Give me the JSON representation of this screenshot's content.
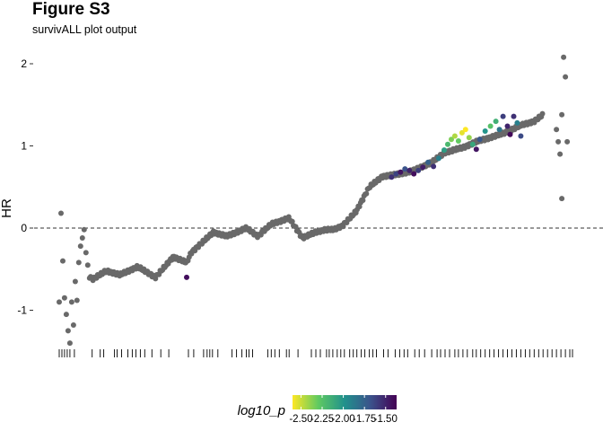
{
  "figure": {
    "title": "Figure S3",
    "subtitle": "survivALL plot output"
  },
  "chart_data": {
    "type": "scatter",
    "title": "Figure S3",
    "subtitle": "survivALL plot output",
    "xlabel": "",
    "ylabel": "HR",
    "yticks": [
      -1,
      0,
      1,
      2
    ],
    "ylim": [
      -1.5,
      2.25
    ],
    "xlim": [
      0,
      580
    ],
    "grid": false,
    "reference_line_y": 0,
    "point_default_color": "#696969",
    "colormap": "viridis",
    "color_min_hex": "#fde725",
    "color_max_hex": "#440154",
    "legend": {
      "title": "log10_p",
      "position": "bottom",
      "range": [
        -2.6,
        -1.37
      ],
      "ticks": [
        "-2.50",
        "-2.25",
        "-2.00",
        "-1.75",
        "-1.50"
      ],
      "tick_values": [
        -2.5,
        -2.25,
        -2.0,
        -1.75,
        -1.5
      ]
    },
    "curve_anchors": {
      "x": [
        0,
        8,
        12,
        20,
        30,
        40,
        55,
        70,
        90,
        110,
        130,
        145,
        150,
        175,
        190,
        212,
        225,
        240,
        260,
        275,
        290,
        300,
        310,
        320,
        335,
        350,
        365,
        380,
        400,
        420,
        435,
        455,
        470,
        485,
        500,
        510,
        520,
        535,
        545
      ],
      "y": [
        -0.9,
        -1.4,
        -0.9,
        -0.6,
        -0.55,
        -0.62,
        -0.52,
        -0.57,
        -0.47,
        -0.6,
        -0.35,
        -0.42,
        -0.3,
        -0.05,
        -0.1,
        0.0,
        -0.1,
        0.05,
        0.12,
        -0.12,
        -0.05,
        -0.02,
        -0.02,
        0.03,
        0.2,
        0.5,
        0.63,
        0.65,
        0.7,
        0.8,
        0.92,
        0.98,
        1.05,
        1.1,
        1.15,
        1.2,
        1.25,
        1.3,
        1.38
      ]
    },
    "colored_points": [
      {
        "x": 145,
        "y": -0.6,
        "log10_p": -1.42
      },
      {
        "x": 375,
        "y": 0.62,
        "log10_p": -1.55
      },
      {
        "x": 380,
        "y": 0.66,
        "log10_p": -1.62
      },
      {
        "x": 385,
        "y": 0.68,
        "log10_p": -1.45
      },
      {
        "x": 390,
        "y": 0.72,
        "log10_p": -1.68
      },
      {
        "x": 395,
        "y": 0.7,
        "log10_p": -1.5
      },
      {
        "x": 400,
        "y": 0.66,
        "log10_p": -1.42
      },
      {
        "x": 405,
        "y": 0.7,
        "log10_p": -1.6
      },
      {
        "x": 410,
        "y": 0.74,
        "log10_p": -1.48
      },
      {
        "x": 416,
        "y": 0.8,
        "log10_p": -1.75
      },
      {
        "x": 422,
        "y": 0.75,
        "log10_p": -1.55
      },
      {
        "x": 428,
        "y": 0.85,
        "log10_p": -1.9
      },
      {
        "x": 434,
        "y": 0.95,
        "log10_p": -2.05
      },
      {
        "x": 438,
        "y": 1.02,
        "log10_p": -2.2
      },
      {
        "x": 442,
        "y": 1.08,
        "log10_p": -2.35
      },
      {
        "x": 446,
        "y": 1.12,
        "log10_p": -2.45
      },
      {
        "x": 450,
        "y": 1.06,
        "log10_p": -2.3
      },
      {
        "x": 454,
        "y": 1.16,
        "log10_p": -2.55
      },
      {
        "x": 458,
        "y": 1.2,
        "log10_p": -2.6
      },
      {
        "x": 462,
        "y": 1.1,
        "log10_p": -2.4
      },
      {
        "x": 466,
        "y": 1.02,
        "log10_p": -2.1
      },
      {
        "x": 470,
        "y": 0.96,
        "log10_p": -1.45
      },
      {
        "x": 474,
        "y": 1.08,
        "log10_p": -1.7
      },
      {
        "x": 480,
        "y": 1.18,
        "log10_p": -2.0
      },
      {
        "x": 486,
        "y": 1.24,
        "log10_p": -2.25
      },
      {
        "x": 492,
        "y": 1.3,
        "log10_p": -2.15
      },
      {
        "x": 496,
        "y": 1.2,
        "log10_p": -1.85
      },
      {
        "x": 500,
        "y": 1.36,
        "log10_p": -1.6
      },
      {
        "x": 505,
        "y": 1.24,
        "log10_p": -1.5
      },
      {
        "x": 508,
        "y": 1.14,
        "log10_p": -1.4
      },
      {
        "x": 512,
        "y": 1.36,
        "log10_p": -1.55
      },
      {
        "x": 516,
        "y": 1.28,
        "log10_p": -1.9
      },
      {
        "x": 520,
        "y": 1.12,
        "log10_p": -1.65
      }
    ],
    "extra_points": [
      {
        "x": 2,
        "y": -0.9
      },
      {
        "x": 4,
        "y": 0.18
      },
      {
        "x": 6,
        "y": -0.4
      },
      {
        "x": 8,
        "y": -0.85
      },
      {
        "x": 10,
        "y": -1.05
      },
      {
        "x": 12,
        "y": -1.25
      },
      {
        "x": 14,
        "y": -1.4
      },
      {
        "x": 16,
        "y": -0.9
      },
      {
        "x": 18,
        "y": -1.18
      },
      {
        "x": 20,
        "y": -0.65
      },
      {
        "x": 22,
        "y": -0.88
      },
      {
        "x": 24,
        "y": -0.42
      },
      {
        "x": 26,
        "y": -0.22
      },
      {
        "x": 28,
        "y": -0.12
      },
      {
        "x": 30,
        "y": -0.02
      },
      {
        "x": 32,
        "y": -0.3
      },
      {
        "x": 34,
        "y": -0.45
      },
      {
        "x": 560,
        "y": 1.2
      },
      {
        "x": 562,
        "y": 1.05
      },
      {
        "x": 564,
        "y": 0.9
      },
      {
        "x": 566,
        "y": 0.36
      },
      {
        "x": 568,
        "y": 2.08
      },
      {
        "x": 570,
        "y": 1.84
      },
      {
        "x": 572,
        "y": 1.05
      },
      {
        "x": 566,
        "y": 1.38
      }
    ],
    "rug_x": [
      2,
      5,
      8,
      11,
      14,
      19,
      39,
      48,
      52,
      64,
      67,
      72,
      79,
      84,
      88,
      93,
      98,
      106,
      116,
      125,
      147,
      153,
      164,
      168,
      171,
      174,
      180,
      196,
      201,
      207,
      212,
      215,
      219,
      236,
      240,
      244,
      249,
      257,
      260,
      270,
      285,
      290,
      295,
      302,
      305,
      309,
      314,
      318,
      322,
      328,
      332,
      336,
      341,
      345,
      350,
      354,
      358,
      366,
      371,
      379,
      384,
      389,
      393,
      401,
      406,
      412,
      420,
      426,
      430,
      435,
      440,
      446,
      450,
      455,
      460,
      466,
      470,
      475,
      480,
      485,
      490,
      495,
      500,
      505,
      510,
      515,
      520,
      525,
      530,
      535,
      540,
      545,
      550,
      555,
      560,
      565,
      570,
      575,
      578
    ]
  }
}
